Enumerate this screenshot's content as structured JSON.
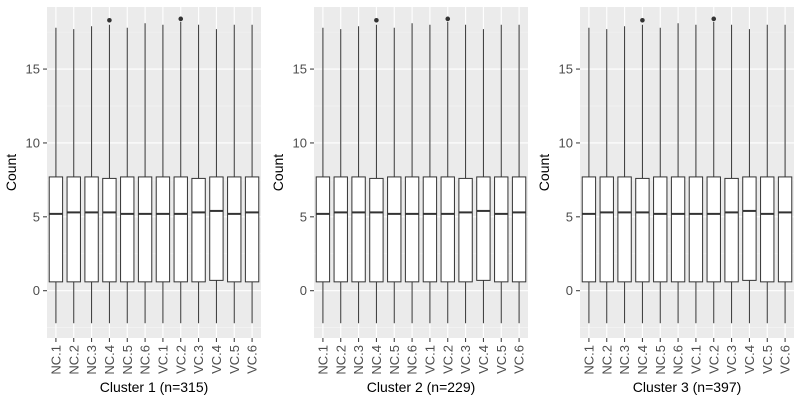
{
  "chart_data": [
    {
      "type": "boxplot",
      "xlabel": "Cluster 1 (n=315)",
      "ylabel": "Count",
      "ylim": [
        -3.2,
        19.2
      ],
      "yticks": [
        0,
        5,
        10,
        15
      ],
      "grid": true,
      "categories": [
        "NC.1",
        "NC.2",
        "NC.3",
        "NC.4",
        "NC.5",
        "NC.6",
        "VC.1",
        "VC.2",
        "VC.3",
        "VC.4",
        "VC.5",
        "VC.6"
      ],
      "boxes": [
        {
          "lower_whisker": -2.2,
          "q1": 0.6,
          "median": 5.2,
          "q3": 7.7,
          "upper_whisker": 17.8,
          "outliers": []
        },
        {
          "lower_whisker": -2.2,
          "q1": 0.6,
          "median": 5.3,
          "q3": 7.7,
          "upper_whisker": 17.7,
          "outliers": []
        },
        {
          "lower_whisker": -2.2,
          "q1": 0.6,
          "median": 5.3,
          "q3": 7.7,
          "upper_whisker": 17.9,
          "outliers": []
        },
        {
          "lower_whisker": -2.2,
          "q1": 0.6,
          "median": 5.3,
          "q3": 7.6,
          "upper_whisker": 18.0,
          "outliers": [
            18.3
          ]
        },
        {
          "lower_whisker": -2.2,
          "q1": 0.6,
          "median": 5.2,
          "q3": 7.7,
          "upper_whisker": 17.8,
          "outliers": []
        },
        {
          "lower_whisker": -2.2,
          "q1": 0.6,
          "median": 5.2,
          "q3": 7.7,
          "upper_whisker": 18.1,
          "outliers": []
        },
        {
          "lower_whisker": -2.2,
          "q1": 0.6,
          "median": 5.2,
          "q3": 7.7,
          "upper_whisker": 18.0,
          "outliers": []
        },
        {
          "lower_whisker": -2.2,
          "q1": 0.6,
          "median": 5.2,
          "q3": 7.7,
          "upper_whisker": 18.2,
          "outliers": [
            18.4
          ]
        },
        {
          "lower_whisker": -2.2,
          "q1": 0.6,
          "median": 5.3,
          "q3": 7.6,
          "upper_whisker": 18.0,
          "outliers": []
        },
        {
          "lower_whisker": -2.2,
          "q1": 0.7,
          "median": 5.4,
          "q3": 7.7,
          "upper_whisker": 17.7,
          "outliers": []
        },
        {
          "lower_whisker": -2.2,
          "q1": 0.6,
          "median": 5.2,
          "q3": 7.7,
          "upper_whisker": 18.0,
          "outliers": []
        },
        {
          "lower_whisker": -2.2,
          "q1": 0.6,
          "median": 5.3,
          "q3": 7.7,
          "upper_whisker": 18.0,
          "outliers": []
        }
      ]
    },
    {
      "type": "boxplot",
      "xlabel": "Cluster 2 (n=229)",
      "ylabel": "Count",
      "ylim": [
        -3.2,
        19.2
      ],
      "yticks": [
        0,
        5,
        10,
        15
      ],
      "grid": true,
      "categories": [
        "NC.1",
        "NC.2",
        "NC.3",
        "NC.4",
        "NC.5",
        "NC.6",
        "VC.1",
        "VC.2",
        "VC.3",
        "VC.4",
        "VC.5",
        "VC.6"
      ],
      "boxes": [
        {
          "lower_whisker": -2.2,
          "q1": 0.6,
          "median": 5.2,
          "q3": 7.7,
          "upper_whisker": 17.8,
          "outliers": []
        },
        {
          "lower_whisker": -2.2,
          "q1": 0.6,
          "median": 5.3,
          "q3": 7.7,
          "upper_whisker": 17.7,
          "outliers": []
        },
        {
          "lower_whisker": -2.2,
          "q1": 0.6,
          "median": 5.3,
          "q3": 7.7,
          "upper_whisker": 17.9,
          "outliers": []
        },
        {
          "lower_whisker": -2.2,
          "q1": 0.6,
          "median": 5.3,
          "q3": 7.6,
          "upper_whisker": 18.0,
          "outliers": [
            18.3
          ]
        },
        {
          "lower_whisker": -2.2,
          "q1": 0.6,
          "median": 5.2,
          "q3": 7.7,
          "upper_whisker": 17.8,
          "outliers": []
        },
        {
          "lower_whisker": -2.2,
          "q1": 0.6,
          "median": 5.2,
          "q3": 7.7,
          "upper_whisker": 18.1,
          "outliers": []
        },
        {
          "lower_whisker": -2.2,
          "q1": 0.6,
          "median": 5.2,
          "q3": 7.7,
          "upper_whisker": 18.0,
          "outliers": []
        },
        {
          "lower_whisker": -2.2,
          "q1": 0.6,
          "median": 5.2,
          "q3": 7.7,
          "upper_whisker": 18.2,
          "outliers": [
            18.4
          ]
        },
        {
          "lower_whisker": -2.2,
          "q1": 0.6,
          "median": 5.3,
          "q3": 7.6,
          "upper_whisker": 18.0,
          "outliers": []
        },
        {
          "lower_whisker": -2.2,
          "q1": 0.7,
          "median": 5.4,
          "q3": 7.7,
          "upper_whisker": 17.7,
          "outliers": []
        },
        {
          "lower_whisker": -2.2,
          "q1": 0.6,
          "median": 5.2,
          "q3": 7.7,
          "upper_whisker": 18.0,
          "outliers": []
        },
        {
          "lower_whisker": -2.2,
          "q1": 0.6,
          "median": 5.3,
          "q3": 7.7,
          "upper_whisker": 18.0,
          "outliers": []
        }
      ]
    },
    {
      "type": "boxplot",
      "xlabel": "Cluster 3 (n=397)",
      "ylabel": "Count",
      "ylim": [
        -3.2,
        19.2
      ],
      "yticks": [
        0,
        5,
        10,
        15
      ],
      "grid": true,
      "categories": [
        "NC.1",
        "NC.2",
        "NC.3",
        "NC.4",
        "NC.5",
        "NC.6",
        "VC.1",
        "VC.2",
        "VC.3",
        "VC.4",
        "VC.5",
        "VC.6"
      ],
      "boxes": [
        {
          "lower_whisker": -2.2,
          "q1": 0.6,
          "median": 5.2,
          "q3": 7.7,
          "upper_whisker": 17.8,
          "outliers": []
        },
        {
          "lower_whisker": -2.2,
          "q1": 0.6,
          "median": 5.3,
          "q3": 7.7,
          "upper_whisker": 17.7,
          "outliers": []
        },
        {
          "lower_whisker": -2.2,
          "q1": 0.6,
          "median": 5.3,
          "q3": 7.7,
          "upper_whisker": 17.9,
          "outliers": []
        },
        {
          "lower_whisker": -2.2,
          "q1": 0.6,
          "median": 5.3,
          "q3": 7.6,
          "upper_whisker": 18.0,
          "outliers": [
            18.3
          ]
        },
        {
          "lower_whisker": -2.2,
          "q1": 0.6,
          "median": 5.2,
          "q3": 7.7,
          "upper_whisker": 17.8,
          "outliers": []
        },
        {
          "lower_whisker": -2.2,
          "q1": 0.6,
          "median": 5.2,
          "q3": 7.7,
          "upper_whisker": 18.1,
          "outliers": []
        },
        {
          "lower_whisker": -2.2,
          "q1": 0.6,
          "median": 5.2,
          "q3": 7.7,
          "upper_whisker": 18.0,
          "outliers": []
        },
        {
          "lower_whisker": -2.2,
          "q1": 0.6,
          "median": 5.2,
          "q3": 7.7,
          "upper_whisker": 18.2,
          "outliers": [
            18.4
          ]
        },
        {
          "lower_whisker": -2.2,
          "q1": 0.6,
          "median": 5.3,
          "q3": 7.6,
          "upper_whisker": 18.0,
          "outliers": []
        },
        {
          "lower_whisker": -2.2,
          "q1": 0.7,
          "median": 5.4,
          "q3": 7.7,
          "upper_whisker": 17.7,
          "outliers": []
        },
        {
          "lower_whisker": -2.2,
          "q1": 0.6,
          "median": 5.2,
          "q3": 7.7,
          "upper_whisker": 18.0,
          "outliers": []
        },
        {
          "lower_whisker": -2.2,
          "q1": 0.6,
          "median": 5.3,
          "q3": 7.7,
          "upper_whisker": 18.0,
          "outliers": []
        }
      ]
    }
  ],
  "colors": {
    "panel_background": "#ebebeb",
    "grid_major": "#ffffff",
    "grid_minor": "#f5f5f5",
    "box_fill": "#ffffff",
    "box_stroke": "#333333",
    "outlier": "#333333",
    "tick_text": "#4d4d4d",
    "axis_title": "#000000"
  }
}
